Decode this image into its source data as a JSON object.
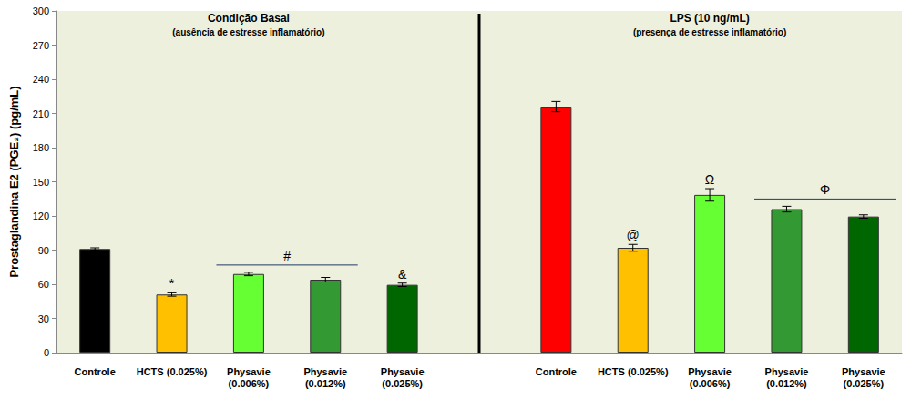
{
  "chart_data": {
    "type": "bar",
    "categories": [
      "Controle",
      "HCTS (0.025%)",
      "Physavie\n(0.006%)",
      "Physavie\n(0.012%)",
      "Physavie\n(0.025%)",
      null,
      "Controle",
      "HCTS (0.025%)",
      "Physavie\n(0.006%)",
      "Physavie\n(0.012%)",
      "Physavie\n(0.025%)"
    ],
    "values": [
      91,
      51,
      69,
      64,
      59.5,
      null,
      216,
      92,
      138.5,
      126,
      119.5
    ],
    "errors": [
      1,
      1.5,
      1.5,
      2,
      1.5,
      null,
      4.5,
      3,
      5.5,
      2.5,
      1.5
    ],
    "colors": [
      "#000000",
      "#ffc000",
      "#66ff33",
      "#339933",
      "#006600",
      null,
      "#ff0000",
      "#ffc000",
      "#66ff33",
      "#339933",
      "#006600"
    ],
    "y_label": "Prostaglandina E2 (PGE₂) (pg/mL)",
    "ylim": [
      0,
      300
    ],
    "yticks": [
      0,
      30,
      60,
      90,
      120,
      150,
      180,
      210,
      240,
      270,
      300
    ],
    "grid": false,
    "panels": [
      {
        "title": "Condição Basal",
        "subtitle": "(ausência de estresse inflamatório)"
      },
      {
        "title": "LPS (10 ng/mL)",
        "subtitle": "(presença de estresse inflamatório)"
      }
    ],
    "annotations": [
      {
        "text": "*",
        "categories": [
          1
        ]
      },
      {
        "text": "#",
        "categories": [
          2,
          3
        ]
      },
      {
        "text": "&",
        "categories": [
          4
        ]
      },
      {
        "text": "@",
        "categories": [
          7
        ]
      },
      {
        "text": "Ω",
        "categories": [
          8
        ]
      },
      {
        "text": "Φ",
        "categories": [
          9,
          10
        ]
      }
    ]
  }
}
